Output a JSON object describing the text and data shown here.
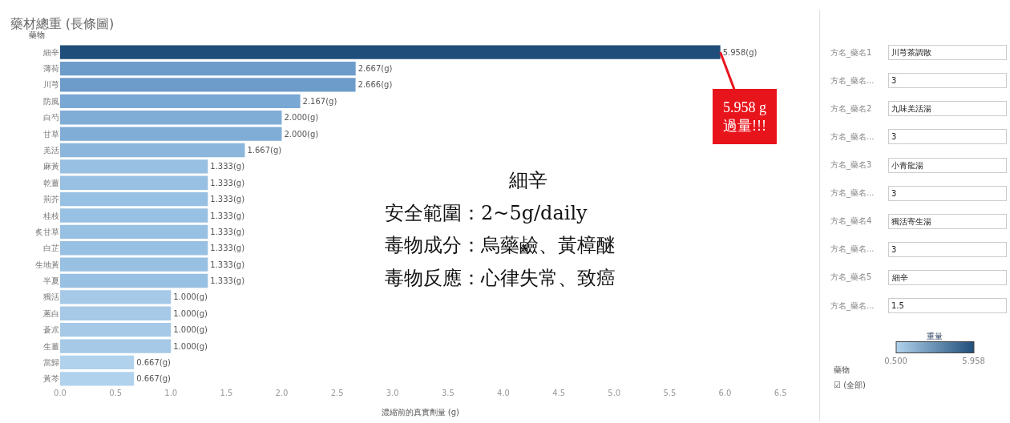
{
  "chart_data": {
    "type": "bar",
    "orientation": "horizontal",
    "title": "藥材總重 (長條圖)",
    "ylabel": "藥物",
    "xlabel": "濃縮前的真實劑量 (g)",
    "categories": [
      "細辛",
      "薄荷",
      "川芎",
      "防風",
      "白芍",
      "甘草",
      "羌活",
      "麻黃",
      "乾薑",
      "荊芥",
      "桂枝",
      "炙甘草",
      "白芷",
      "生地黃",
      "半夏",
      "獨活",
      "蔥白",
      "蒼朮",
      "生薑",
      "當歸",
      "黃芩"
    ],
    "values": [
      5.958,
      2.667,
      2.666,
      2.167,
      2.0,
      2.0,
      1.667,
      1.333,
      1.333,
      1.333,
      1.333,
      1.333,
      1.333,
      1.333,
      1.333,
      1.0,
      1.0,
      1.0,
      1.0,
      0.667,
      0.667
    ],
    "value_labels": [
      "5.958(g)",
      "2.667(g)",
      "2.666(g)",
      "2.167(g)",
      "2.000(g)",
      "2.000(g)",
      "1.667(g)",
      "1.333(g)",
      "1.333(g)",
      "1.333(g)",
      "1.333(g)",
      "1.333(g)",
      "1.333(g)",
      "1.333(g)",
      "1.333(g)",
      "1.000(g)",
      "1.000(g)",
      "1.000(g)",
      "1.000(g)",
      "0.667(g)",
      "0.667(g)"
    ],
    "colors": [
      "#1f4e7a",
      "#6d9ccb",
      "#6d9ccb",
      "#7aa8d4",
      "#80add6",
      "#80add6",
      "#8cb6dc",
      "#98c0e2",
      "#98c0e2",
      "#98c0e2",
      "#98c0e2",
      "#98c0e2",
      "#98c0e2",
      "#98c0e2",
      "#98c0e2",
      "#a5c9e7",
      "#a5c9e7",
      "#a5c9e7",
      "#a5c9e7",
      "#b1d2ec",
      "#b1d2ec"
    ],
    "xlim": [
      0,
      6.5
    ],
    "xticks": [
      {
        "value": 0,
        "label": "0.0"
      },
      0.5,
      {
        "value": 1,
        "label": "1.0"
      },
      1.5,
      {
        "value": 2,
        "label": "2.0"
      },
      2.5,
      {
        "value": 3,
        "label": "3.0"
      },
      3.5,
      {
        "value": 4,
        "label": "4.0"
      },
      4.5,
      {
        "value": 5,
        "label": "5.0"
      },
      5.5,
      {
        "value": 6,
        "label": "6.0"
      },
      6.5
    ],
    "clabel": "重量",
    "clim": [
      0.5,
      5.958
    ],
    "cticks": [
      {
        "value": 0.5,
        "label": "0.500"
      },
      {
        "value": 5.958,
        "label": "5.958"
      }
    ],
    "annotations": [
      {
        "text": "5.958 g\n過量!!!",
        "x": 5.958,
        "y": "細辛"
      },
      "細辛",
      "安全範圍：2~5g/daily",
      "毒物成分：烏藥鹼、黃樟醚",
      "毒物反應：心律失常、致癌",
      "方名_藥名1",
      "川芎茶調散",
      "方名_藥名...",
      "3",
      "方名_藥名2",
      "九味羌活湯",
      "方名_藥名...",
      "3",
      "方名_藥名3",
      "小青龍湯",
      "方名_藥名...",
      "3",
      "方名_藥名4",
      "獨活寄生湯",
      "方名_藥名...",
      "3",
      "方名_藥名5",
      "細辛",
      "方名_藥名...",
      "1.5",
      "藥物",
      "☑ (全部)"
    ]
  }
}
